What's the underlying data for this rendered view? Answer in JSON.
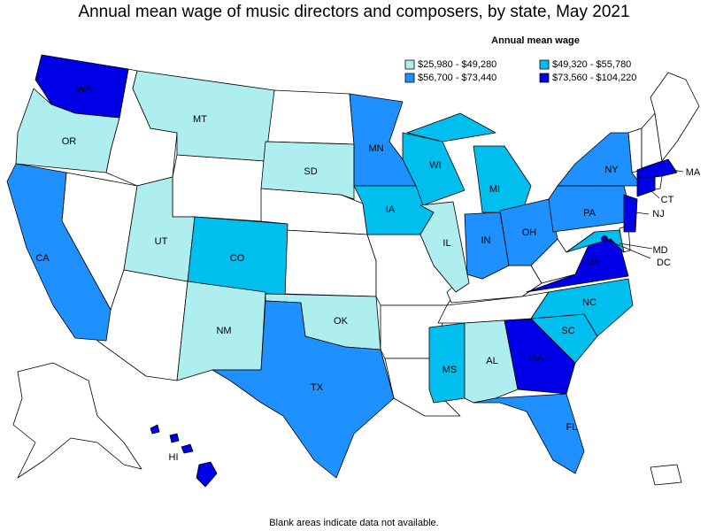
{
  "title": "Annual mean wage of music directors and composers, by state, May 2021",
  "legend": {
    "title": "Annual mean wage",
    "items": [
      {
        "label": "$25,980 - $49,280",
        "color": "#afeeee"
      },
      {
        "label": "$49,320 - $55,780",
        "color": "#00bfef"
      },
      {
        "label": "$56,700 - $73,440",
        "color": "#1e90ff"
      },
      {
        "label": "$73,560 - $104,220",
        "color": "#0000e6"
      }
    ]
  },
  "states": [
    {
      "label": "WA",
      "wage_range": 3
    },
    {
      "label": "OR",
      "wage_range": 0
    },
    {
      "label": "CA",
      "wage_range": 2
    },
    {
      "label": "MT",
      "wage_range": 0
    },
    {
      "label": "UT",
      "wage_range": 0
    },
    {
      "label": "CO",
      "wage_range": 1
    },
    {
      "label": "NM",
      "wage_range": 0
    },
    {
      "label": "SD",
      "wage_range": 0
    },
    {
      "label": "OK",
      "wage_range": 0
    },
    {
      "label": "TX",
      "wage_range": 2
    },
    {
      "label": "MN",
      "wage_range": 2
    },
    {
      "label": "IA",
      "wage_range": 1
    },
    {
      "label": "WI",
      "wage_range": 1
    },
    {
      "label": "IL",
      "wage_range": 0
    },
    {
      "label": "MI",
      "wage_range": 1
    },
    {
      "label": "IN",
      "wage_range": 2
    },
    {
      "label": "OH",
      "wage_range": 2
    },
    {
      "label": "MS",
      "wage_range": 1
    },
    {
      "label": "AL",
      "wage_range": 0
    },
    {
      "label": "GA",
      "wage_range": 3
    },
    {
      "label": "FL",
      "wage_range": 2
    },
    {
      "label": "SC",
      "wage_range": 1
    },
    {
      "label": "NC",
      "wage_range": 1
    },
    {
      "label": "VA",
      "wage_range": 3
    },
    {
      "label": "PA",
      "wage_range": 2
    },
    {
      "label": "NY",
      "wage_range": 2
    },
    {
      "label": "MD",
      "wage_range": 1
    },
    {
      "label": "DC",
      "wage_range": 3
    },
    {
      "label": "NJ",
      "wage_range": 3
    },
    {
      "label": "CT",
      "wage_range": 3
    },
    {
      "label": "MA",
      "wage_range": 3
    },
    {
      "label": "HI",
      "wage_range": 3
    }
  ],
  "footnote": "Blank areas indicate data not available."
}
